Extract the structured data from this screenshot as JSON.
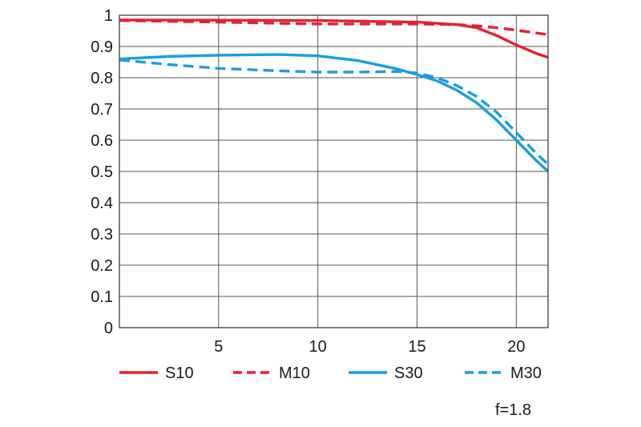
{
  "chart_data": {
    "type": "line",
    "title": "",
    "xlabel": "",
    "ylabel": "",
    "xlim": [
      0,
      21.6
    ],
    "ylim": [
      0,
      1
    ],
    "x_ticks": [
      5,
      10,
      15,
      20
    ],
    "x_tick_labels": [
      "5",
      "10",
      "15",
      "20"
    ],
    "y_ticks": [
      0,
      0.1,
      0.2,
      0.3,
      0.4,
      0.5,
      0.6,
      0.7,
      0.8,
      0.9,
      1
    ],
    "y_tick_labels": [
      "0",
      "0.1",
      "0.2",
      "0.3",
      "0.4",
      "0.5",
      "0.6",
      "0.7",
      "0.8",
      "0.9",
      "1"
    ],
    "grid": true,
    "legend_position": "bottom",
    "series": [
      {
        "name": "S10",
        "color": "#e8202e",
        "dash": "solid",
        "points": [
          [
            0,
            0.985
          ],
          [
            5,
            0.984
          ],
          [
            10,
            0.983
          ],
          [
            15,
            0.978
          ],
          [
            17,
            0.97
          ],
          [
            18,
            0.96
          ],
          [
            19,
            0.935
          ],
          [
            20,
            0.905
          ],
          [
            21,
            0.878
          ],
          [
            21.6,
            0.865
          ]
        ]
      },
      {
        "name": "M10",
        "color": "#e8202e",
        "dash": "dashed",
        "points": [
          [
            0,
            0.983
          ],
          [
            5,
            0.978
          ],
          [
            10,
            0.972
          ],
          [
            15,
            0.972
          ],
          [
            17,
            0.97
          ],
          [
            18,
            0.966
          ],
          [
            19,
            0.96
          ],
          [
            20,
            0.952
          ],
          [
            21,
            0.943
          ],
          [
            21.6,
            0.938
          ]
        ]
      },
      {
        "name": "S30",
        "color": "#1a9ee0",
        "dash": "solid",
        "points": [
          [
            0,
            0.86
          ],
          [
            2.5,
            0.868
          ],
          [
            5,
            0.872
          ],
          [
            8,
            0.874
          ],
          [
            10,
            0.87
          ],
          [
            12,
            0.855
          ],
          [
            14,
            0.828
          ],
          [
            15,
            0.81
          ],
          [
            16,
            0.79
          ],
          [
            17,
            0.76
          ],
          [
            18,
            0.72
          ],
          [
            19,
            0.665
          ],
          [
            20,
            0.6
          ],
          [
            21,
            0.535
          ],
          [
            21.6,
            0.5
          ]
        ]
      },
      {
        "name": "M30",
        "color": "#1a9ee0",
        "dash": "dashed",
        "points": [
          [
            0,
            0.857
          ],
          [
            2.5,
            0.842
          ],
          [
            5,
            0.83
          ],
          [
            8,
            0.822
          ],
          [
            10,
            0.818
          ],
          [
            12,
            0.818
          ],
          [
            14,
            0.82
          ],
          [
            15,
            0.815
          ],
          [
            16,
            0.8
          ],
          [
            17,
            0.775
          ],
          [
            18,
            0.74
          ],
          [
            19,
            0.69
          ],
          [
            20,
            0.625
          ],
          [
            21,
            0.558
          ],
          [
            21.6,
            0.523
          ]
        ]
      }
    ],
    "annotations": [
      "f=1.8"
    ]
  }
}
